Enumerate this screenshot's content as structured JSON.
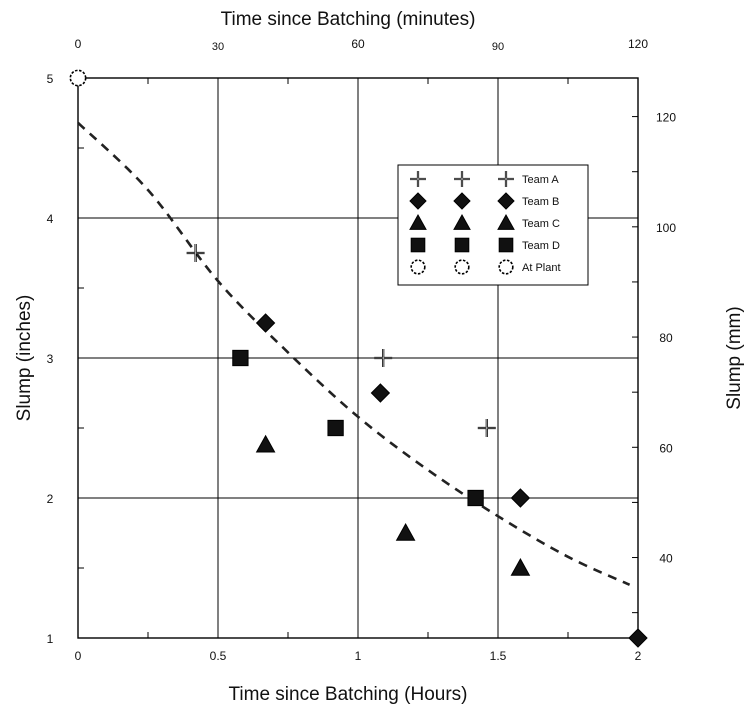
{
  "chart_data": {
    "type": "scatter",
    "title": "",
    "xlabel": "Time since Batching (Hours)",
    "ylabel": "Slump (inches)",
    "x2label": "Time since Batching (minutes)",
    "y2label": "Slump (mm)",
    "xlim": [
      0,
      2
    ],
    "ylim": [
      1,
      5
    ],
    "x2lim": [
      0,
      120
    ],
    "y2lim": [
      25.4,
      127
    ],
    "xticks": [
      0,
      0.5,
      1,
      1.5,
      2
    ],
    "xtick_labels": [
      "0",
      "0.5",
      "1",
      "1.5",
      "2"
    ],
    "yticks": [
      1,
      2,
      3,
      4,
      5
    ],
    "ytick_labels": [
      "1",
      "2",
      "3",
      "4",
      "5"
    ],
    "x2ticks": [
      0,
      30,
      60,
      90,
      120
    ],
    "x2tick_labels": [
      "0",
      "30",
      "60",
      "90",
      "120"
    ],
    "y2ticks": [
      40,
      60,
      80,
      100,
      120
    ],
    "y2tick_labels": [
      "40",
      "60",
      "80",
      "100",
      "120"
    ],
    "grid": true,
    "legend_position": "upper-right",
    "series": [
      {
        "name": "Team A",
        "marker": "plus",
        "points": [
          [
            0.42,
            3.75
          ],
          [
            1.09,
            3.0
          ],
          [
            1.46,
            2.5
          ]
        ]
      },
      {
        "name": "Team B",
        "marker": "diamond",
        "points": [
          [
            0.67,
            3.25
          ],
          [
            1.08,
            2.75
          ],
          [
            1.58,
            2.0
          ],
          [
            2.0,
            1.0
          ]
        ]
      },
      {
        "name": "Team C",
        "marker": "triangle",
        "points": [
          [
            0.67,
            2.38
          ],
          [
            1.17,
            1.75
          ],
          [
            1.58,
            1.5
          ]
        ]
      },
      {
        "name": "Team D",
        "marker": "square",
        "points": [
          [
            0.58,
            3.0
          ],
          [
            0.92,
            2.5
          ],
          [
            1.42,
            2.0
          ]
        ]
      },
      {
        "name": "At Plant",
        "marker": "circle",
        "points": [
          [
            0.0,
            5.0
          ]
        ]
      }
    ],
    "trend_line": {
      "style": "dashed",
      "points": [
        [
          0.0,
          4.68
        ],
        [
          0.25,
          4.2
        ],
        [
          0.5,
          3.55
        ],
        [
          0.75,
          3.04
        ],
        [
          1.0,
          2.58
        ],
        [
          1.25,
          2.2
        ],
        [
          1.5,
          1.87
        ],
        [
          1.75,
          1.58
        ],
        [
          1.97,
          1.38
        ]
      ]
    }
  }
}
